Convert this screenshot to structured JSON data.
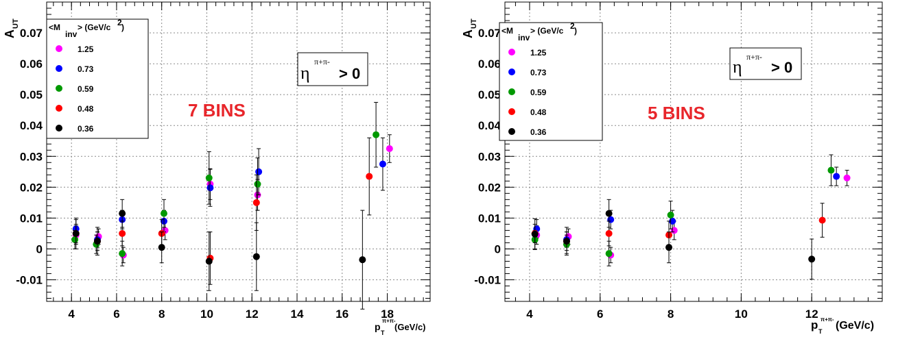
{
  "chart_data": [
    {
      "type": "scatter",
      "title": "",
      "bins_label": "7 BINS",
      "cut_label": {
        "symbol": "η",
        "superscript": "π+π-",
        "text": "> 0"
      },
      "ylabel": {
        "main": "A",
        "sub": "UT"
      },
      "xlabel": {
        "main": "p",
        "sub": "T",
        "sup": "π+π-",
        "unit": "(GeV/c)"
      },
      "xlim": [
        2.9,
        19.9
      ],
      "ylim": [
        -0.017,
        0.08
      ],
      "xticks": [
        4,
        6,
        8,
        10,
        12,
        14,
        16,
        18
      ],
      "xtick_labels": [
        "4",
        "6",
        "8",
        "10",
        "12",
        "14",
        "16",
        "18"
      ],
      "yticks": [
        -0.01,
        0,
        0.01,
        0.02,
        0.03,
        0.04,
        0.05,
        0.06,
        0.07
      ],
      "ytick_labels": [
        "-0.01",
        "0",
        "0.01",
        "0.02",
        "0.03",
        "0.04",
        "0.05",
        "0.06",
        "0.07"
      ],
      "grid": true,
      "legend_position": "top-left",
      "legend_header": {
        "pre": "<M",
        "sub": "inv",
        "post": "> (GeV/c",
        "sup": "2",
        "end": ")"
      },
      "series": [
        {
          "name": "1.25",
          "color": "#ff00ff",
          "points": [
            {
              "x": 4.2,
              "y": 0.0045,
              "err": 0.003
            },
            {
              "x": 5.2,
              "y": 0.004,
              "err": 0.0025
            },
            {
              "x": 6.3,
              "y": -0.002,
              "err": 0.0025
            },
            {
              "x": 8.15,
              "y": 0.006,
              "err": 0.003
            },
            {
              "x": 10.15,
              "y": 0.021,
              "err": 0.005
            },
            {
              "x": 12.25,
              "y": 0.0175,
              "err": 0.005
            },
            {
              "x": 18.1,
              "y": 0.0325,
              "err": 0.0045
            }
          ]
        },
        {
          "name": "0.73",
          "color": "#0000ff",
          "points": [
            {
              "x": 4.2,
              "y": 0.0065,
              "err": 0.003
            },
            {
              "x": 5.15,
              "y": 0.003,
              "err": 0.0025
            },
            {
              "x": 6.25,
              "y": 0.0095,
              "err": 0.003
            },
            {
              "x": 8.1,
              "y": 0.009,
              "err": 0.0035
            },
            {
              "x": 10.15,
              "y": 0.0198,
              "err": 0.006
            },
            {
              "x": 12.3,
              "y": 0.025,
              "err": 0.0075
            },
            {
              "x": 17.8,
              "y": 0.0275,
              "err": 0.0085
            }
          ]
        },
        {
          "name": "0.59",
          "color": "#009900",
          "points": [
            {
              "x": 4.15,
              "y": 0.003,
              "err": 0.003
            },
            {
              "x": 5.1,
              "y": 0.0015,
              "err": 0.003
            },
            {
              "x": 6.25,
              "y": -0.0015,
              "err": 0.004
            },
            {
              "x": 8.1,
              "y": 0.0115,
              "err": 0.0045
            },
            {
              "x": 10.1,
              "y": 0.023,
              "err": 0.0085
            },
            {
              "x": 12.25,
              "y": 0.021,
              "err": 0.0085
            },
            {
              "x": 17.5,
              "y": 0.037,
              "err": 0.0105
            }
          ]
        },
        {
          "name": "0.48",
          "color": "#ff0000",
          "points": [
            {
              "x": 4.2,
              "y": 0.005,
              "err": 0.003
            },
            {
              "x": 5.15,
              "y": 0.0025,
              "err": 0.003
            },
            {
              "x": 6.25,
              "y": 0.005,
              "err": 0.004
            },
            {
              "x": 8.0,
              "y": 0.005,
              "err": 0.0045
            },
            {
              "x": 10.15,
              "y": -0.003,
              "err": 0.0085
            },
            {
              "x": 12.2,
              "y": 0.015,
              "err": 0.009
            },
            {
              "x": 17.2,
              "y": 0.0235,
              "err": 0.0125
            }
          ]
        },
        {
          "name": "0.36",
          "color": "#000000",
          "points": [
            {
              "x": 4.2,
              "y": 0.005,
              "err": 0.005
            },
            {
              "x": 5.15,
              "y": 0.0025,
              "err": 0.0045
            },
            {
              "x": 6.25,
              "y": 0.0115,
              "err": 0.0045
            },
            {
              "x": 8.0,
              "y": 0.0005,
              "err": 0.005
            },
            {
              "x": 10.1,
              "y": -0.004,
              "err": 0.0095
            },
            {
              "x": 12.2,
              "y": -0.0025,
              "err": 0.011
            },
            {
              "x": 16.9,
              "y": -0.0035,
              "err": 0.016
            }
          ]
        }
      ]
    },
    {
      "type": "scatter",
      "title": "",
      "bins_label": "5 BINS",
      "cut_label": {
        "symbol": "η",
        "superscript": "π+π-",
        "text": "> 0"
      },
      "ylabel": {
        "main": "A",
        "sub": "UT"
      },
      "xlabel": {
        "main": "p",
        "sub": "T",
        "sup": "π+π-",
        "unit": "(GeV/c)"
      },
      "xlim": [
        3.3,
        14.0
      ],
      "ylim": [
        -0.017,
        0.08
      ],
      "xticks": [
        4,
        6,
        8,
        10,
        12
      ],
      "xtick_labels": [
        "4",
        "6",
        "8",
        "10",
        "12"
      ],
      "yticks": [
        -0.01,
        0,
        0.01,
        0.02,
        0.03,
        0.04,
        0.05,
        0.06,
        0.07
      ],
      "ytick_labels": [
        "-0.01",
        "0",
        "0.01",
        "0.02",
        "0.03",
        "0.04",
        "0.05",
        "0.06",
        "0.07"
      ],
      "grid": true,
      "legend_position": "top-left",
      "legend_header": {
        "pre": "<M",
        "sub": "inv",
        "post": "> (GeV/c",
        "sup": "2",
        "end": ")"
      },
      "series": [
        {
          "name": "1.25",
          "color": "#ff00ff",
          "points": [
            {
              "x": 4.2,
              "y": 0.0045,
              "err": 0.003
            },
            {
              "x": 5.1,
              "y": 0.004,
              "err": 0.0025
            },
            {
              "x": 6.3,
              "y": -0.002,
              "err": 0.0025
            },
            {
              "x": 8.1,
              "y": 0.006,
              "err": 0.003
            },
            {
              "x": 13.0,
              "y": 0.023,
              "err": 0.0025
            }
          ]
        },
        {
          "name": "0.73",
          "color": "#0000ff",
          "points": [
            {
              "x": 4.2,
              "y": 0.0065,
              "err": 0.003
            },
            {
              "x": 5.05,
              "y": 0.003,
              "err": 0.0025
            },
            {
              "x": 6.3,
              "y": 0.0095,
              "err": 0.003
            },
            {
              "x": 8.05,
              "y": 0.009,
              "err": 0.0035
            },
            {
              "x": 12.7,
              "y": 0.0235,
              "err": 0.003
            }
          ]
        },
        {
          "name": "0.59",
          "color": "#009900",
          "points": [
            {
              "x": 4.15,
              "y": 0.003,
              "err": 0.003
            },
            {
              "x": 5.05,
              "y": 0.0015,
              "err": 0.003
            },
            {
              "x": 6.25,
              "y": -0.0015,
              "err": 0.004
            },
            {
              "x": 8.0,
              "y": 0.011,
              "err": 0.0045
            },
            {
              "x": 12.55,
              "y": 0.0255,
              "err": 0.005
            }
          ]
        },
        {
          "name": "0.48",
          "color": "#ff0000",
          "points": [
            {
              "x": 4.15,
              "y": 0.005,
              "err": 0.003
            },
            {
              "x": 5.05,
              "y": 0.0025,
              "err": 0.003
            },
            {
              "x": 6.25,
              "y": 0.005,
              "err": 0.004
            },
            {
              "x": 7.95,
              "y": 0.0045,
              "err": 0.0045
            },
            {
              "x": 12.3,
              "y": 0.0093,
              "err": 0.0055
            }
          ]
        },
        {
          "name": "0.36",
          "color": "#000000",
          "points": [
            {
              "x": 4.15,
              "y": 0.0048,
              "err": 0.005
            },
            {
              "x": 5.05,
              "y": 0.0025,
              "err": 0.0045
            },
            {
              "x": 6.25,
              "y": 0.0115,
              "err": 0.0045
            },
            {
              "x": 7.95,
              "y": 0.0005,
              "err": 0.005
            },
            {
              "x": 12.0,
              "y": -0.0033,
              "err": 0.0065
            }
          ]
        }
      ]
    }
  ]
}
